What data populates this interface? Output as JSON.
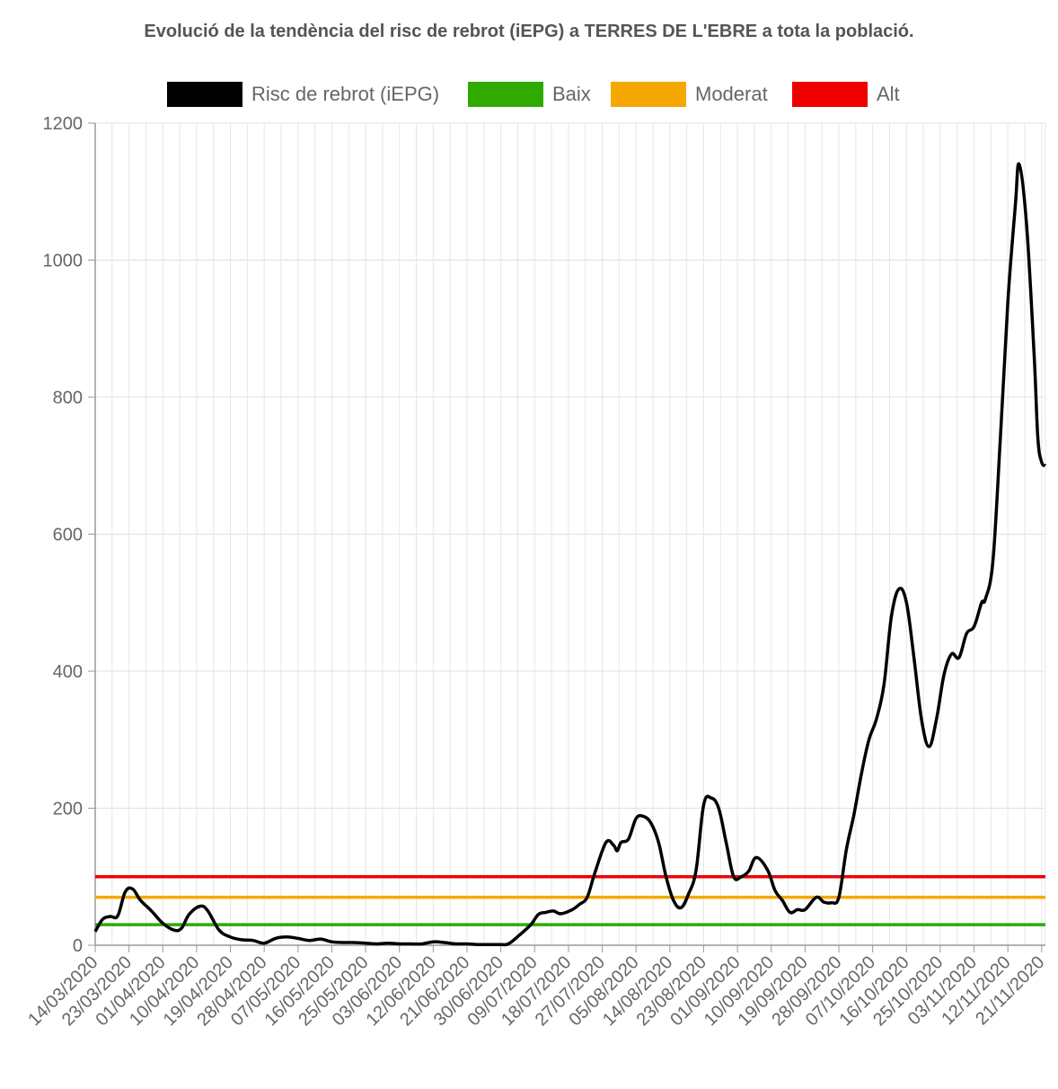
{
  "chart_data": {
    "type": "line",
    "title": "Evolució de la tendència del risc de rebrot (iEPG) a TERRES DE L'EBRE a tota la població.",
    "xlabel": "",
    "ylabel": "",
    "ylim": [
      0,
      1200
    ],
    "yticks": [
      0,
      200,
      400,
      600,
      800,
      1000,
      1200
    ],
    "grid": true,
    "legend_position": "top",
    "xtick_labels": [
      "14/03/2020",
      "23/03/2020",
      "01/04/2020",
      "10/04/2020",
      "19/04/2020",
      "28/04/2020",
      "07/05/2020",
      "16/05/2020",
      "25/05/2020",
      "03/06/2020",
      "12/06/2020",
      "21/06/2020",
      "30/06/2020",
      "09/07/2020",
      "18/07/2020",
      "27/07/2020",
      "05/08/2020",
      "14/08/2020",
      "23/08/2020",
      "01/09/2020",
      "10/09/2020",
      "19/09/2020",
      "28/09/2020",
      "07/10/2020",
      "16/10/2020",
      "25/10/2020",
      "03/11/2020",
      "12/11/2020",
      "21/11/2020"
    ],
    "series": [
      {
        "name": "Risc de rebrot (iEPG)",
        "color": "#000000",
        "points": [
          [
            "14/03/2020",
            20
          ],
          [
            "16/03/2020",
            38
          ],
          [
            "18/03/2020",
            42
          ],
          [
            "20/03/2020",
            43
          ],
          [
            "22/03/2020",
            78
          ],
          [
            "24/03/2020",
            82
          ],
          [
            "26/03/2020",
            66
          ],
          [
            "29/03/2020",
            50
          ],
          [
            "01/04/2020",
            32
          ],
          [
            "04/04/2020",
            22
          ],
          [
            "06/04/2020",
            25
          ],
          [
            "08/04/2020",
            45
          ],
          [
            "11/04/2020",
            57
          ],
          [
            "13/04/2020",
            50
          ],
          [
            "16/04/2020",
            22
          ],
          [
            "19/04/2020",
            12
          ],
          [
            "22/04/2020",
            8
          ],
          [
            "25/04/2020",
            7
          ],
          [
            "28/04/2020",
            3
          ],
          [
            "01/05/2020",
            10
          ],
          [
            "04/05/2020",
            12
          ],
          [
            "07/05/2020",
            10
          ],
          [
            "10/05/2020",
            7
          ],
          [
            "13/05/2020",
            9
          ],
          [
            "16/05/2020",
            5
          ],
          [
            "19/05/2020",
            4
          ],
          [
            "22/05/2020",
            4
          ],
          [
            "25/05/2020",
            3
          ],
          [
            "28/05/2020",
            2
          ],
          [
            "31/05/2020",
            3
          ],
          [
            "03/06/2020",
            2
          ],
          [
            "06/06/2020",
            2
          ],
          [
            "09/06/2020",
            2
          ],
          [
            "12/06/2020",
            5
          ],
          [
            "15/06/2020",
            4
          ],
          [
            "18/06/2020",
            2
          ],
          [
            "21/06/2020",
            2
          ],
          [
            "24/06/2020",
            1
          ],
          [
            "27/06/2020",
            1
          ],
          [
            "30/06/2020",
            1
          ],
          [
            "02/07/2020",
            2
          ],
          [
            "05/07/2020",
            15
          ],
          [
            "08/07/2020",
            30
          ],
          [
            "10/07/2020",
            45
          ],
          [
            "12/07/2020",
            48
          ],
          [
            "14/07/2020",
            50
          ],
          [
            "16/07/2020",
            46
          ],
          [
            "19/07/2020",
            52
          ],
          [
            "21/07/2020",
            60
          ],
          [
            "23/07/2020",
            70
          ],
          [
            "25/07/2020",
            105
          ],
          [
            "28/07/2020",
            150
          ],
          [
            "30/07/2020",
            146
          ],
          [
            "31/07/2020",
            138
          ],
          [
            "01/08/2020",
            150
          ],
          [
            "03/08/2020",
            155
          ],
          [
            "05/08/2020",
            185
          ],
          [
            "07/08/2020",
            188
          ],
          [
            "09/08/2020",
            178
          ],
          [
            "11/08/2020",
            150
          ],
          [
            "13/08/2020",
            100
          ],
          [
            "15/08/2020",
            65
          ],
          [
            "17/08/2020",
            55
          ],
          [
            "19/08/2020",
            75
          ],
          [
            "21/08/2020",
            110
          ],
          [
            "23/08/2020",
            205
          ],
          [
            "25/08/2020",
            215
          ],
          [
            "27/08/2020",
            200
          ],
          [
            "29/08/2020",
            150
          ],
          [
            "31/08/2020",
            100
          ],
          [
            "02/09/2020",
            100
          ],
          [
            "04/09/2020",
            108
          ],
          [
            "06/09/2020",
            128
          ],
          [
            "09/09/2020",
            110
          ],
          [
            "11/09/2020",
            80
          ],
          [
            "13/09/2020",
            65
          ],
          [
            "15/09/2020",
            48
          ],
          [
            "17/09/2020",
            52
          ],
          [
            "19/09/2020",
            52
          ],
          [
            "22/09/2020",
            70
          ],
          [
            "24/09/2020",
            63
          ],
          [
            "26/09/2020",
            62
          ],
          [
            "28/09/2020",
            70
          ],
          [
            "30/09/2020",
            140
          ],
          [
            "02/10/2020",
            190
          ],
          [
            "04/10/2020",
            250
          ],
          [
            "06/10/2020",
            300
          ],
          [
            "08/10/2020",
            330
          ],
          [
            "10/10/2020",
            380
          ],
          [
            "12/10/2020",
            480
          ],
          [
            "14/10/2020",
            520
          ],
          [
            "16/10/2020",
            500
          ],
          [
            "18/10/2020",
            420
          ],
          [
            "20/10/2020",
            330
          ],
          [
            "22/10/2020",
            290
          ],
          [
            "24/10/2020",
            330
          ],
          [
            "26/10/2020",
            395
          ],
          [
            "28/10/2020",
            425
          ],
          [
            "30/10/2020",
            420
          ],
          [
            "01/11/2020",
            455
          ],
          [
            "03/11/2020",
            465
          ],
          [
            "05/11/2020",
            500
          ],
          [
            "06/11/2020",
            505
          ],
          [
            "08/11/2020",
            560
          ],
          [
            "10/11/2020",
            740
          ],
          [
            "12/11/2020",
            940
          ],
          [
            "14/11/2020",
            1080
          ],
          [
            "15/11/2020",
            1140
          ],
          [
            "17/11/2020",
            1050
          ],
          [
            "19/11/2020",
            860
          ],
          [
            "20/11/2020",
            740
          ],
          [
            "21/11/2020",
            705
          ],
          [
            "22/11/2020",
            700
          ]
        ]
      },
      {
        "name": "Baix",
        "color": "#2fab00",
        "value": 30
      },
      {
        "name": "Moderat",
        "color": "#f5a800",
        "value": 70
      },
      {
        "name": "Alt",
        "color": "#ee0000",
        "value": 100
      }
    ]
  }
}
